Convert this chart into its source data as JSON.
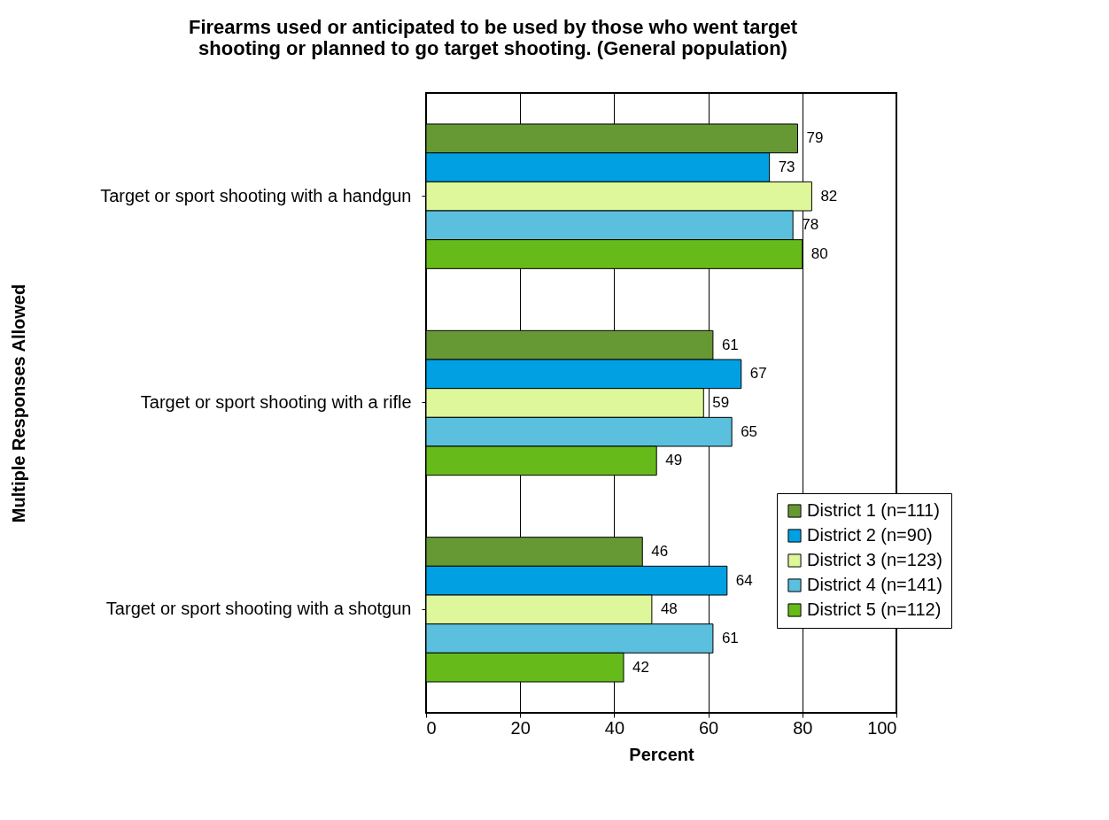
{
  "chart_data": {
    "type": "bar",
    "orientation": "horizontal",
    "title": "Firearms used or anticipated to be used by those who went target shooting or planned to go target shooting. (General population)",
    "xlabel": "Percent",
    "ylabel": "Multiple Responses Allowed",
    "categories": [
      "Target or sport shooting with a handgun",
      "Target or sport shooting with a rifle",
      "Target or sport shooting with a shotgun"
    ],
    "series": [
      {
        "name": "District 1 (n=111)",
        "color": "#669933",
        "values": [
          79,
          61,
          46
        ]
      },
      {
        "name": "District 2 (n=90)",
        "color": "#00a0e3",
        "values": [
          73,
          67,
          64
        ]
      },
      {
        "name": "District 3 (n=123)",
        "color": "#ddf79a",
        "values": [
          82,
          59,
          48
        ]
      },
      {
        "name": "District 4 (n=141)",
        "color": "#5bc0de",
        "values": [
          78,
          65,
          61
        ]
      },
      {
        "name": "District 5 (n=112)",
        "color": "#66bb1a",
        "values": [
          80,
          49,
          42
        ]
      }
    ],
    "xlim": [
      0,
      100
    ],
    "xticks": [
      0,
      20,
      40,
      60,
      80,
      100
    ],
    "grid": "x",
    "legend": "bottom right",
    "data_labels": true
  }
}
